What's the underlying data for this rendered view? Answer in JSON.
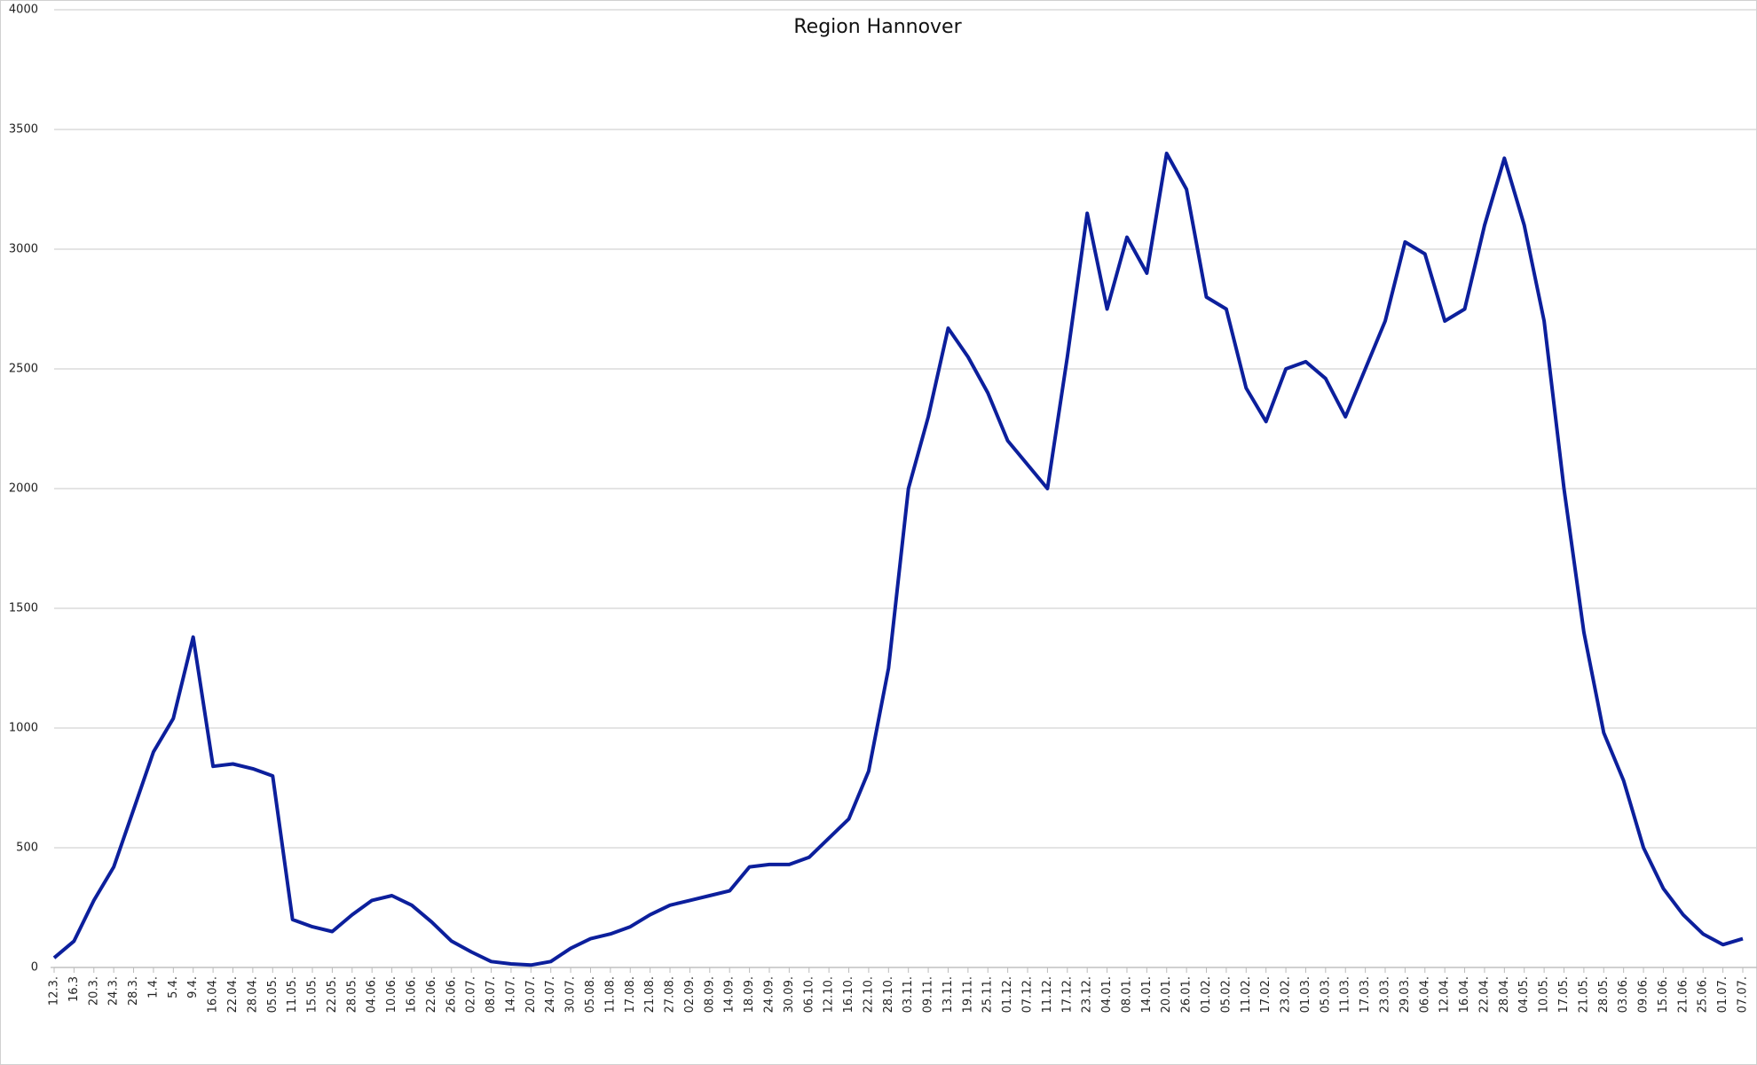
{
  "chart_data": {
    "type": "line",
    "title": "Region Hannover",
    "categories": [
      "12.3.",
      "16.3",
      "20.3.",
      "24.3.",
      "28.3.",
      "1.4.",
      "5.4.",
      "9.4.",
      "16.04.",
      "22.04.",
      "28.04.",
      "05.05.",
      "11.05.",
      "15.05.",
      "22.05.",
      "28.05.",
      "04.06.",
      "10.06.",
      "16.06.",
      "22.06.",
      "26.06.",
      "02.07.",
      "08.07.",
      "14.07.",
      "20.07.",
      "24.07.",
      "30.07.",
      "05.08.",
      "11.08.",
      "17.08.",
      "21.08.",
      "27.08.",
      "02.09.",
      "08.09.",
      "14.09.",
      "18.09.",
      "24.09.",
      "30.09.",
      "06.10.",
      "12.10.",
      "16.10.",
      "22.10.",
      "28.10.",
      "03.11.",
      "09.11.",
      "13.11.",
      "19.11.",
      "25.11.",
      "01.12.",
      "07.12.",
      "11.12.",
      "17.12.",
      "23.12.",
      "04.01.",
      "08.01.",
      "14.01.",
      "20.01.",
      "26.01.",
      "01.02.",
      "05.02.",
      "11.02.",
      "17.02.",
      "23.02.",
      "01.03.",
      "05.03.",
      "11.03.",
      "17.03.",
      "23.03.",
      "29.03.",
      "06.04.",
      "12.04.",
      "16.04.",
      "22.04.",
      "28.04.",
      "04.05.",
      "10.05.",
      "17.05.",
      "21.05.",
      "28.05.",
      "03.06.",
      "09.06.",
      "15.06.",
      "21.06.",
      "25.06.",
      "01.07.",
      "07.07."
    ],
    "series": [
      {
        "color": "#0c1f9c",
        "values": [
          40,
          110,
          280,
          420,
          660,
          900,
          1040,
          1380,
          840,
          850,
          830,
          800,
          200,
          170,
          150,
          220,
          280,
          300,
          260,
          190,
          110,
          65,
          25,
          15,
          10,
          25,
          80,
          120,
          140,
          170,
          220,
          260,
          280,
          300,
          320,
          420,
          430,
          430,
          460,
          540,
          620,
          820,
          1250,
          2000,
          2300,
          2670,
          2550,
          2400,
          2200,
          2100,
          2000,
          2550,
          3150,
          2750,
          3050,
          2900,
          3400,
          3250,
          2800,
          2750,
          2420,
          2280,
          2500,
          2530,
          2460,
          2300,
          2500,
          2700,
          3030,
          2980,
          2700,
          2750,
          3100,
          3380,
          3100,
          2700,
          2000,
          1400,
          980,
          780,
          500,
          330,
          220,
          140,
          95,
          120
        ]
      }
    ],
    "ylim": [
      0,
      4000
    ],
    "yticks": [
      0,
      500,
      1000,
      1500,
      2000,
      2500,
      3000,
      3500,
      4000
    ],
    "grid": true
  }
}
